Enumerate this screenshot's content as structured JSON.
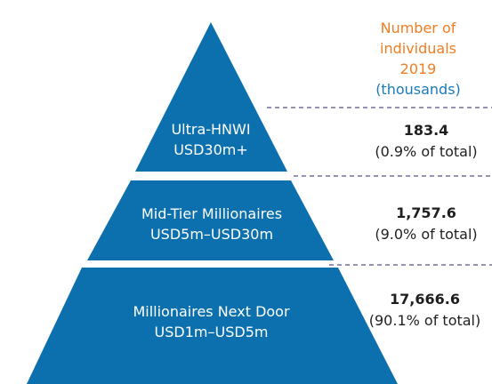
{
  "header": {
    "line1": "Number of",
    "line2": "individuals",
    "line3": "2019",
    "line4": "(thousands)"
  },
  "tiers": [
    {
      "name": "Ultra-HNWI",
      "range": "USD30m+",
      "value": "183.4",
      "share": "(0.9% of total)"
    },
    {
      "name": "Mid-Tier Millionaires",
      "range": "USD5m–USD30m",
      "value": "1,757.6",
      "share": "(9.0% of total)"
    },
    {
      "name": "Millionaires Next Door",
      "range": "USD1m–USD5m",
      "value": "17,666.6",
      "share": "(90.1% of total)"
    }
  ],
  "colors": {
    "pyramid": "#0b70ad",
    "divider": "#5b4f86",
    "header_orange": "#ef7d22",
    "header_blue": "#1a7ab6"
  }
}
